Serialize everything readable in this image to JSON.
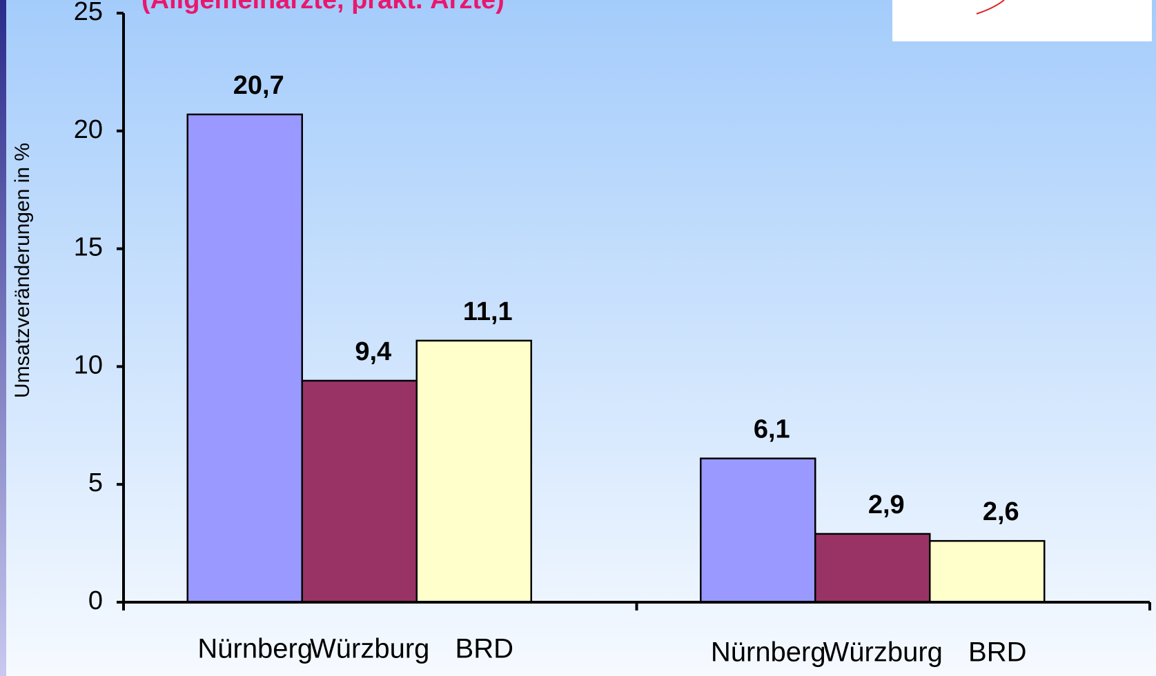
{
  "chart_data": {
    "type": "bar",
    "subtitle": "(Allgemeinärzte, prakt. Ärzte)",
    "ylabel": "Umsatzveränderungen in %",
    "categories": [
      null,
      null
    ],
    "series": [
      {
        "name": "Nürnberg",
        "color": "#9999ff",
        "values": [
          20.7,
          6.1
        ],
        "value_labels": [
          "20,7",
          "6,1"
        ]
      },
      {
        "name": "Würzburg",
        "color": "#993366",
        "values": [
          9.4,
          2.9
        ],
        "value_labels": [
          "9,4",
          "2,9"
        ]
      },
      {
        "name": "BRD",
        "color": "#ffffcc",
        "values": [
          11.1,
          2.6
        ],
        "value_labels": [
          "11,1",
          "2,6"
        ]
      }
    ],
    "ylim": [
      0,
      25
    ],
    "yticks": [
      0,
      5,
      10,
      15,
      20,
      25
    ]
  }
}
